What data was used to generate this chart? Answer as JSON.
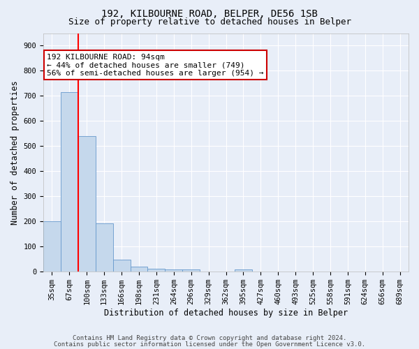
{
  "title1": "192, KILBOURNE ROAD, BELPER, DE56 1SB",
  "title2": "Size of property relative to detached houses in Belper",
  "xlabel": "Distribution of detached houses by size in Belper",
  "ylabel": "Number of detached properties",
  "categories": [
    "35sqm",
    "67sqm",
    "100sqm",
    "133sqm",
    "166sqm",
    "198sqm",
    "231sqm",
    "264sqm",
    "296sqm",
    "329sqm",
    "362sqm",
    "395sqm",
    "427sqm",
    "460sqm",
    "493sqm",
    "525sqm",
    "558sqm",
    "591sqm",
    "624sqm",
    "656sqm",
    "689sqm"
  ],
  "values": [
    200,
    715,
    540,
    192,
    47,
    20,
    13,
    10,
    8,
    0,
    0,
    9,
    0,
    0,
    0,
    0,
    0,
    0,
    0,
    0,
    0
  ],
  "bar_color": "#c5d8ec",
  "bar_edge_color": "#6699cc",
  "red_line_x": 1.5,
  "ylim": [
    0,
    950
  ],
  "yticks": [
    0,
    100,
    200,
    300,
    400,
    500,
    600,
    700,
    800,
    900
  ],
  "annotation_text": "192 KILBOURNE ROAD: 94sqm\n← 44% of detached houses are smaller (749)\n56% of semi-detached houses are larger (954) →",
  "annotation_box_color": "#ffffff",
  "annotation_box_edge": "#cc0000",
  "footnote1": "Contains HM Land Registry data © Crown copyright and database right 2024.",
  "footnote2": "Contains public sector information licensed under the Open Government Licence v3.0.",
  "bg_color": "#e8eef8",
  "grid_color": "#ffffff",
  "title1_fontsize": 10,
  "title2_fontsize": 9,
  "xlabel_fontsize": 8.5,
  "ylabel_fontsize": 8.5,
  "tick_fontsize": 7.5,
  "annot_fontsize": 8,
  "footnote_fontsize": 6.5
}
